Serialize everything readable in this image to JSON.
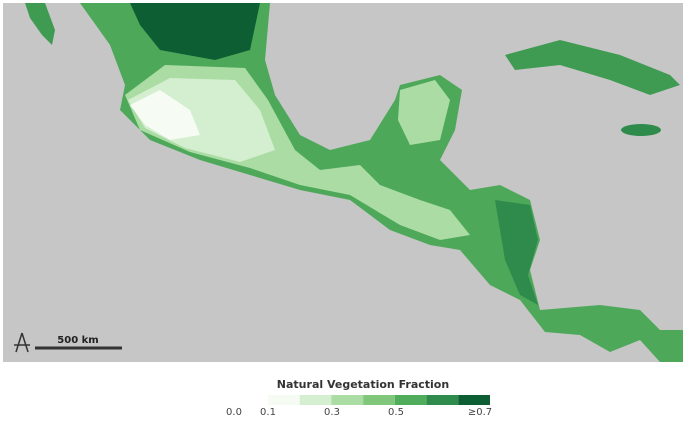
{
  "map": {
    "scale_label": "500 km"
  },
  "legend": {
    "title": "Natural Vegetation Fraction",
    "colors": [
      "#f6fcf4",
      "#d4efcf",
      "#aadca4",
      "#80c77b",
      "#4fad5c",
      "#2e8b4c",
      "#0d5f33"
    ],
    "labels": [
      "0.0",
      "0.1",
      "0.3",
      "0.5",
      "≥0.7"
    ]
  }
}
